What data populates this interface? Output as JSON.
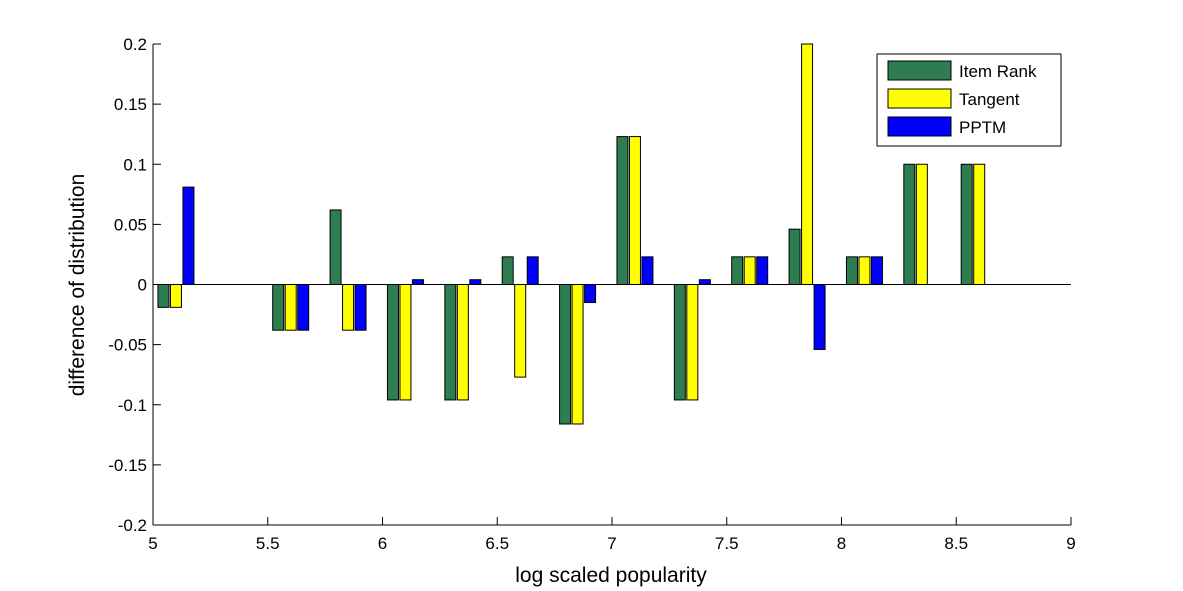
{
  "chart_data": {
    "type": "bar",
    "title": "",
    "xlabel": "log scaled popularity",
    "ylabel": "difference of distribution",
    "xlim": [
      5,
      9
    ],
    "ylim": [
      -0.2,
      0.2
    ],
    "xticks": [
      "5",
      "5.5",
      "6",
      "6.5",
      "7",
      "7.5",
      "8",
      "8.5",
      "9"
    ],
    "yticks": [
      "-0.2",
      "-0.15",
      "-0.1",
      "-0.05",
      "0",
      "0.05",
      "0.1",
      "0.15",
      "0.2"
    ],
    "grid": false,
    "legend_position": "top-right",
    "x": [
      5.1,
      5.6,
      5.85,
      6.1,
      6.35,
      6.6,
      6.85,
      7.1,
      7.35,
      7.6,
      7.85,
      8.1,
      8.35,
      8.6
    ],
    "series": [
      {
        "name": "Item Rank",
        "color": "#2e7d50",
        "values": [
          -0.019,
          -0.038,
          0.062,
          -0.096,
          -0.096,
          0.023,
          -0.116,
          0.123,
          -0.096,
          0.023,
          0.046,
          0.023,
          0.1,
          0.1
        ]
      },
      {
        "name": "Tangent",
        "color": "#ffff00",
        "values": [
          -0.019,
          -0.038,
          -0.038,
          -0.096,
          -0.096,
          -0.077,
          -0.116,
          0.123,
          -0.096,
          0.023,
          0.2,
          0.023,
          0.1,
          0.1
        ]
      },
      {
        "name": "PPTM",
        "color": "#0000ff",
        "values": [
          0.081,
          -0.038,
          -0.038,
          0.004,
          0.004,
          0.023,
          -0.015,
          0.023,
          0.004,
          0.023,
          -0.054,
          0.023,
          0,
          0
        ]
      }
    ]
  }
}
